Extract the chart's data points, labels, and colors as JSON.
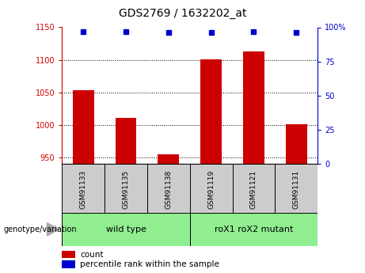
{
  "title": "GDS2769 / 1632202_at",
  "samples": [
    "GSM91133",
    "GSM91135",
    "GSM91138",
    "GSM91119",
    "GSM91121",
    "GSM91131"
  ],
  "counts": [
    1053,
    1010,
    955,
    1101,
    1113,
    1001
  ],
  "percentile_ranks": [
    97,
    97,
    96,
    96,
    97,
    96
  ],
  "ylim_left": [
    940,
    1150
  ],
  "ylim_right": [
    0,
    100
  ],
  "yticks_left": [
    950,
    1000,
    1050,
    1100,
    1150
  ],
  "yticks_right": [
    0,
    25,
    50,
    75,
    100
  ],
  "ytick_labels_right": [
    "0",
    "25",
    "50",
    "75",
    "100%"
  ],
  "bar_color": "#cc0000",
  "dot_color": "#0000cc",
  "bar_width": 0.5,
  "box_bg": "#cccccc",
  "group_bg": "#90ee90",
  "legend_count_color": "#cc0000",
  "legend_pct_color": "#0000cc",
  "left_tick_color": "#cc0000",
  "right_tick_color": "#0000cc",
  "baseline": 940,
  "wt_label": "wild type",
  "mut_label": "roX1 roX2 mutant",
  "geno_label": "genotype/variation",
  "count_legend": "count",
  "pct_legend": "percentile rank within the sample"
}
